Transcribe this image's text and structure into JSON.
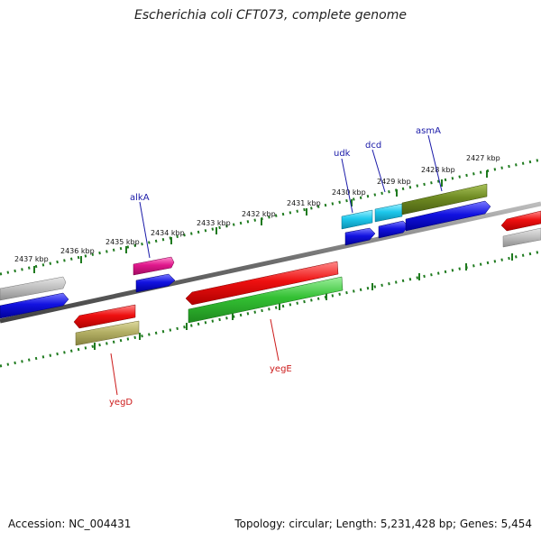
{
  "title": "Escherichia coli CFT073, complete genome",
  "footer": {
    "accession": "Accession: NC_004431",
    "summary": "Topology: circular; Length: 5,231,428 bp; Genes: 5,454"
  },
  "scale_labels": [
    "2437 kbp",
    "2436 kbp",
    "2435 kbp",
    "2434 kbp",
    "2433 kbp",
    "2432 kbp",
    "2431 kbp",
    "2430 kbp",
    "2429 kbp",
    "2428 kbp",
    "2427 kbp"
  ],
  "gene_labels": [
    "alkA",
    "udk",
    "dcd",
    "asmA",
    "yegD",
    "yegE"
  ],
  "colors": {
    "backbone": "#777777",
    "tick": "#1e7a1e",
    "label_blue": "#1a1aa8",
    "label_red": "#cc1a1a",
    "red": "#e01010",
    "blue": "#1212dd",
    "gray": "#b8b8b8",
    "green": "#33c033",
    "olive": "#6e8a22",
    "khaki": "#b4b066",
    "cyan": "#1ec8ec",
    "magenta": "#e0188c"
  }
}
